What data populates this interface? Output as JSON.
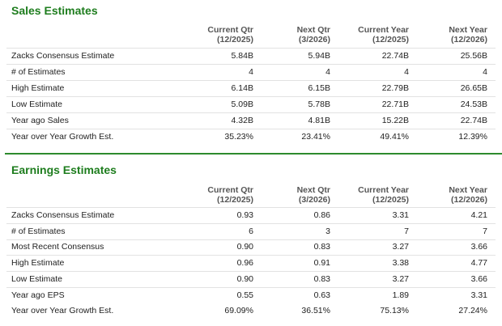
{
  "sections": [
    {
      "title": "Sales Estimates",
      "columns": [
        [
          "Current Qtr",
          "(12/2025)"
        ],
        [
          "Next Qtr",
          "(3/2026)"
        ],
        [
          "Current Year",
          "(12/2025)"
        ],
        [
          "Next Year",
          "(12/2026)"
        ]
      ],
      "rows": [
        [
          "Zacks Consensus Estimate",
          "5.84B",
          "5.94B",
          "22.74B",
          "25.56B"
        ],
        [
          "# of Estimates",
          "4",
          "4",
          "4",
          "4"
        ],
        [
          "High Estimate",
          "6.14B",
          "6.15B",
          "22.79B",
          "26.65B"
        ],
        [
          "Low Estimate",
          "5.09B",
          "5.78B",
          "22.71B",
          "24.53B"
        ],
        [
          "Year ago Sales",
          "4.32B",
          "4.81B",
          "15.22B",
          "22.74B"
        ],
        [
          "Year over Year Growth Est.",
          "35.23%",
          "23.41%",
          "49.41%",
          "12.39%"
        ]
      ]
    },
    {
      "title": "Earnings Estimates",
      "columns": [
        [
          "Current Qtr",
          "(12/2025)"
        ],
        [
          "Next Qtr",
          "(3/2026)"
        ],
        [
          "Current Year",
          "(12/2025)"
        ],
        [
          "Next Year",
          "(12/2026)"
        ]
      ],
      "rows": [
        [
          "Zacks Consensus Estimate",
          "0.93",
          "0.86",
          "3.31",
          "4.21"
        ],
        [
          "# of Estimates",
          "6",
          "3",
          "7",
          "7"
        ],
        [
          "Most Recent Consensus",
          "0.90",
          "0.83",
          "3.27",
          "3.66"
        ],
        [
          "High Estimate",
          "0.96",
          "0.91",
          "3.38",
          "4.77"
        ],
        [
          "Low Estimate",
          "0.90",
          "0.83",
          "3.27",
          "3.66"
        ],
        [
          "Year ago EPS",
          "0.55",
          "0.63",
          "1.89",
          "3.31"
        ],
        [
          "Year over Year Growth Est.",
          "69.09%",
          "36.51%",
          "75.13%",
          "27.24%"
        ]
      ]
    }
  ]
}
